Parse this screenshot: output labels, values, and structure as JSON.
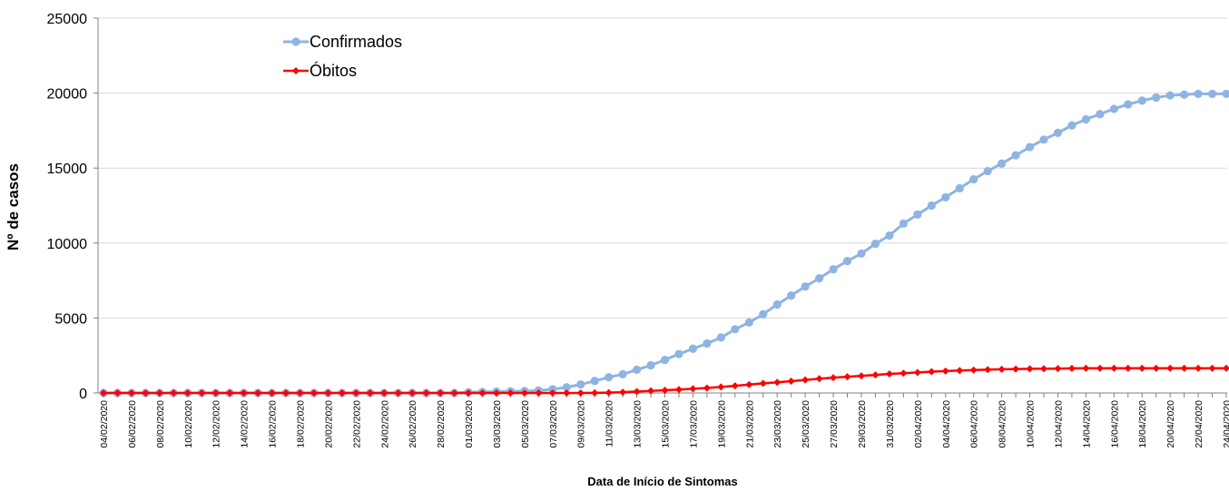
{
  "chart_data": {
    "type": "line",
    "xlabel": "Data de Início de Sintomas",
    "ylabel": "Nº de casos",
    "ylim": [
      0,
      25000
    ],
    "yticks": [
      0,
      5000,
      10000,
      15000,
      20000,
      25000
    ],
    "grid": "horizontal",
    "legend_position": "top-left",
    "x": [
      "04/02/2020",
      "05/02/2020",
      "06/02/2020",
      "07/02/2020",
      "08/02/2020",
      "09/02/2020",
      "10/02/2020",
      "11/02/2020",
      "12/02/2020",
      "13/02/2020",
      "14/02/2020",
      "15/02/2020",
      "16/02/2020",
      "17/02/2020",
      "18/02/2020",
      "19/02/2020",
      "20/02/2020",
      "21/02/2020",
      "22/02/2020",
      "23/02/2020",
      "24/02/2020",
      "25/02/2020",
      "26/02/2020",
      "27/02/2020",
      "28/02/2020",
      "29/02/2020",
      "01/03/2020",
      "02/03/2020",
      "03/03/2020",
      "04/03/2020",
      "05/03/2020",
      "06/03/2020",
      "07/03/2020",
      "08/03/2020",
      "09/03/2020",
      "10/03/2020",
      "11/03/2020",
      "12/03/2020",
      "13/03/2020",
      "14/03/2020",
      "15/03/2020",
      "16/03/2020",
      "17/03/2020",
      "18/03/2020",
      "19/03/2020",
      "20/03/2020",
      "21/03/2020",
      "22/03/2020",
      "23/03/2020",
      "24/03/2020",
      "25/03/2020",
      "26/03/2020",
      "27/03/2020",
      "28/03/2020",
      "29/03/2020",
      "30/03/2020",
      "31/03/2020",
      "01/04/2020",
      "02/04/2020",
      "03/04/2020",
      "04/04/2020",
      "05/04/2020",
      "06/04/2020",
      "07/04/2020",
      "08/04/2020",
      "09/04/2020",
      "10/04/2020",
      "11/04/2020",
      "12/04/2020",
      "13/04/2020",
      "14/04/2020",
      "15/04/2020",
      "16/04/2020",
      "17/04/2020",
      "18/04/2020",
      "19/04/2020",
      "20/04/2020",
      "21/04/2020",
      "22/04/2020",
      "23/04/2020",
      "24/04/2020"
    ],
    "series": [
      {
        "name": "Confirmados",
        "color": "#8EB4E3",
        "marker": "circle",
        "values": [
          0,
          0,
          0,
          0,
          0,
          0,
          0,
          0,
          0,
          0,
          0,
          0,
          0,
          0,
          0,
          0,
          0,
          0,
          0,
          0,
          0,
          0,
          0,
          0,
          0,
          0,
          50,
          70,
          90,
          110,
          130,
          170,
          250,
          380,
          570,
          800,
          1050,
          1250,
          1550,
          1850,
          2200,
          2600,
          2950,
          3300,
          3700,
          4250,
          4700,
          5250,
          5900,
          6500,
          7100,
          7650,
          8250,
          8800,
          9300,
          9950,
          10500,
          11300,
          11900,
          12500,
          13050,
          13650,
          14250,
          14800,
          15300,
          15850,
          16400,
          16900,
          17350,
          17850,
          18250,
          18600,
          18950,
          19250,
          19500,
          19700,
          19850,
          19900,
          19950,
          19950,
          19950
        ],
        "marker_start_index": 0
      },
      {
        "name": "Óbitos",
        "color": "#FF0000",
        "marker": "diamond",
        "values": [
          0,
          0,
          0,
          0,
          0,
          0,
          0,
          0,
          0,
          0,
          0,
          0,
          0,
          0,
          0,
          0,
          0,
          0,
          0,
          0,
          0,
          0,
          0,
          0,
          0,
          0,
          0,
          0,
          0,
          0,
          0,
          0,
          0,
          0,
          0,
          5,
          20,
          50,
          100,
          140,
          180,
          230,
          280,
          330,
          400,
          480,
          560,
          640,
          710,
          790,
          870,
          950,
          1020,
          1080,
          1140,
          1200,
          1270,
          1320,
          1370,
          1420,
          1460,
          1500,
          1530,
          1560,
          1580,
          1600,
          1610,
          1620,
          1630,
          1640,
          1650,
          1650,
          1650,
          1650,
          1650,
          1650,
          1650,
          1650,
          1650,
          1650,
          1650
        ]
      }
    ]
  }
}
